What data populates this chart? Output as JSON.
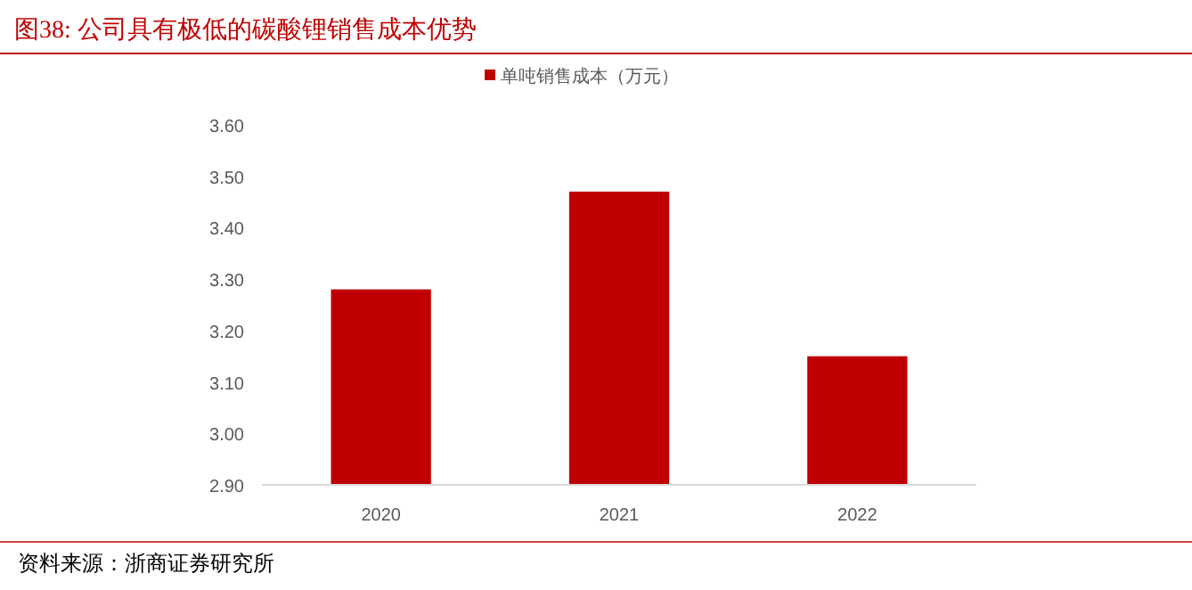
{
  "chart_data": {
    "type": "bar",
    "title": "图38:  公司具有极低的碳酸锂销售成本优势",
    "categories": [
      "2020",
      "2021",
      "2022"
    ],
    "series": [
      {
        "name": "单吨销售成本（万元）",
        "color": "#c00000",
        "values": [
          3.28,
          3.47,
          3.15
        ]
      }
    ],
    "ylim": [
      2.9,
      3.6
    ],
    "yticks": [
      {
        "value": 2.9,
        "label": "2.90"
      },
      {
        "value": 3.0,
        "label": "3.00"
      },
      {
        "value": 3.1,
        "label": "3.10"
      },
      {
        "value": 3.2,
        "label": "3.20"
      },
      {
        "value": 3.3,
        "label": "3.30"
      },
      {
        "value": 3.4,
        "label": "3.40"
      },
      {
        "value": 3.5,
        "label": "3.50"
      },
      {
        "value": 3.6,
        "label": "3.60"
      }
    ],
    "grid": false,
    "legend": "top",
    "annotations": [
      "资料来源：浙商证券研究所"
    ]
  }
}
